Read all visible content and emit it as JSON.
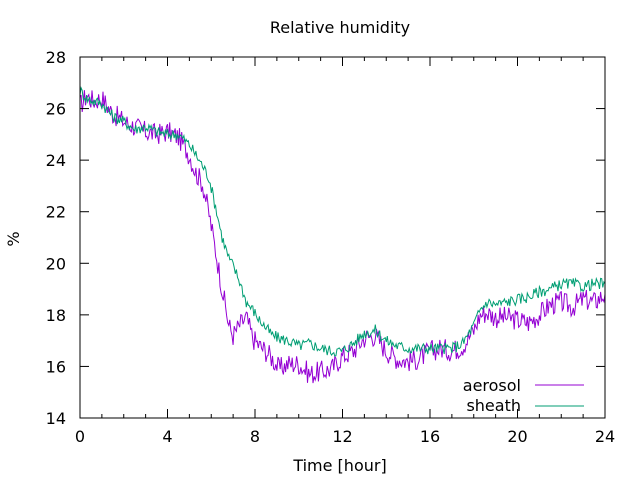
{
  "chart_data": {
    "type": "line",
    "title": "Relative humidity",
    "xlabel": "Time [hour]",
    "ylabel": "%",
    "xlim": [
      0,
      24
    ],
    "ylim": [
      14,
      28
    ],
    "xticks": [
      0,
      4,
      8,
      12,
      16,
      20,
      24
    ],
    "yticks": [
      14,
      16,
      18,
      20,
      22,
      24,
      26,
      28
    ],
    "grid": false,
    "legend_position": "bottom-right",
    "series": [
      {
        "name": "aerosol",
        "color": "#9400d3",
        "x": [
          0.0,
          0.3,
          0.6,
          1.0,
          1.5,
          2.0,
          2.5,
          3.0,
          3.5,
          4.0,
          4.5,
          5.0,
          5.3,
          5.6,
          5.9,
          6.2,
          6.5,
          6.8,
          7.0,
          7.3,
          7.6,
          7.9,
          8.2,
          8.5,
          8.8,
          9.1,
          9.5,
          10.0,
          10.5,
          11.0,
          11.5,
          12.0,
          12.5,
          13.0,
          13.5,
          14.0,
          14.5,
          15.0,
          15.5,
          16.0,
          16.5,
          17.0,
          17.5,
          18.0,
          18.3,
          18.6,
          19.0,
          19.5,
          20.0,
          20.5,
          21.0,
          21.5,
          22.0,
          22.5,
          23.0,
          23.5,
          24.0
        ],
        "y": [
          26.1,
          26.5,
          26.3,
          26.4,
          25.8,
          25.5,
          25.3,
          25.1,
          25.0,
          25.1,
          24.9,
          24.2,
          23.5,
          23.1,
          21.9,
          20.5,
          19.0,
          17.6,
          17.2,
          17.6,
          17.9,
          17.1,
          16.8,
          16.6,
          16.3,
          15.9,
          16.1,
          16.1,
          15.7,
          15.8,
          15.9,
          16.4,
          16.6,
          17.1,
          17.2,
          16.6,
          16.3,
          16.2,
          16.3,
          16.6,
          16.7,
          16.6,
          16.8,
          17.4,
          18.0,
          18.1,
          17.9,
          17.9,
          17.8,
          17.7,
          18.0,
          18.4,
          18.5,
          18.3,
          18.6,
          18.5,
          18.8
        ]
      },
      {
        "name": "sheath",
        "color": "#009e73",
        "x": [
          0.0,
          0.3,
          0.6,
          1.0,
          1.5,
          2.0,
          2.5,
          3.0,
          3.5,
          4.0,
          4.5,
          5.0,
          5.3,
          5.6,
          5.9,
          6.2,
          6.5,
          6.8,
          7.0,
          7.3,
          7.6,
          7.9,
          8.2,
          8.5,
          8.8,
          9.1,
          9.5,
          10.0,
          10.5,
          11.0,
          11.5,
          12.0,
          12.5,
          13.0,
          13.5,
          14.0,
          14.5,
          15.0,
          15.5,
          16.0,
          16.5,
          17.0,
          17.5,
          18.0,
          18.3,
          18.6,
          19.0,
          19.5,
          20.0,
          20.5,
          21.0,
          21.5,
          22.0,
          22.5,
          23.0,
          23.5,
          24.0
        ],
        "y": [
          26.7,
          26.4,
          26.3,
          26.2,
          25.7,
          25.5,
          25.2,
          25.3,
          25.1,
          25.0,
          25.0,
          24.6,
          24.2,
          23.8,
          23.3,
          22.2,
          21.0,
          20.2,
          19.9,
          19.3,
          18.5,
          18.2,
          17.8,
          17.5,
          17.2,
          17.1,
          17.0,
          16.8,
          16.9,
          16.7,
          16.6,
          16.6,
          16.9,
          17.3,
          17.4,
          17.0,
          16.8,
          16.7,
          16.7,
          16.7,
          16.7,
          16.7,
          16.9,
          17.6,
          18.2,
          18.5,
          18.4,
          18.5,
          18.6,
          18.7,
          18.9,
          19.0,
          19.2,
          19.2,
          19.1,
          19.2,
          19.2
        ]
      }
    ]
  }
}
